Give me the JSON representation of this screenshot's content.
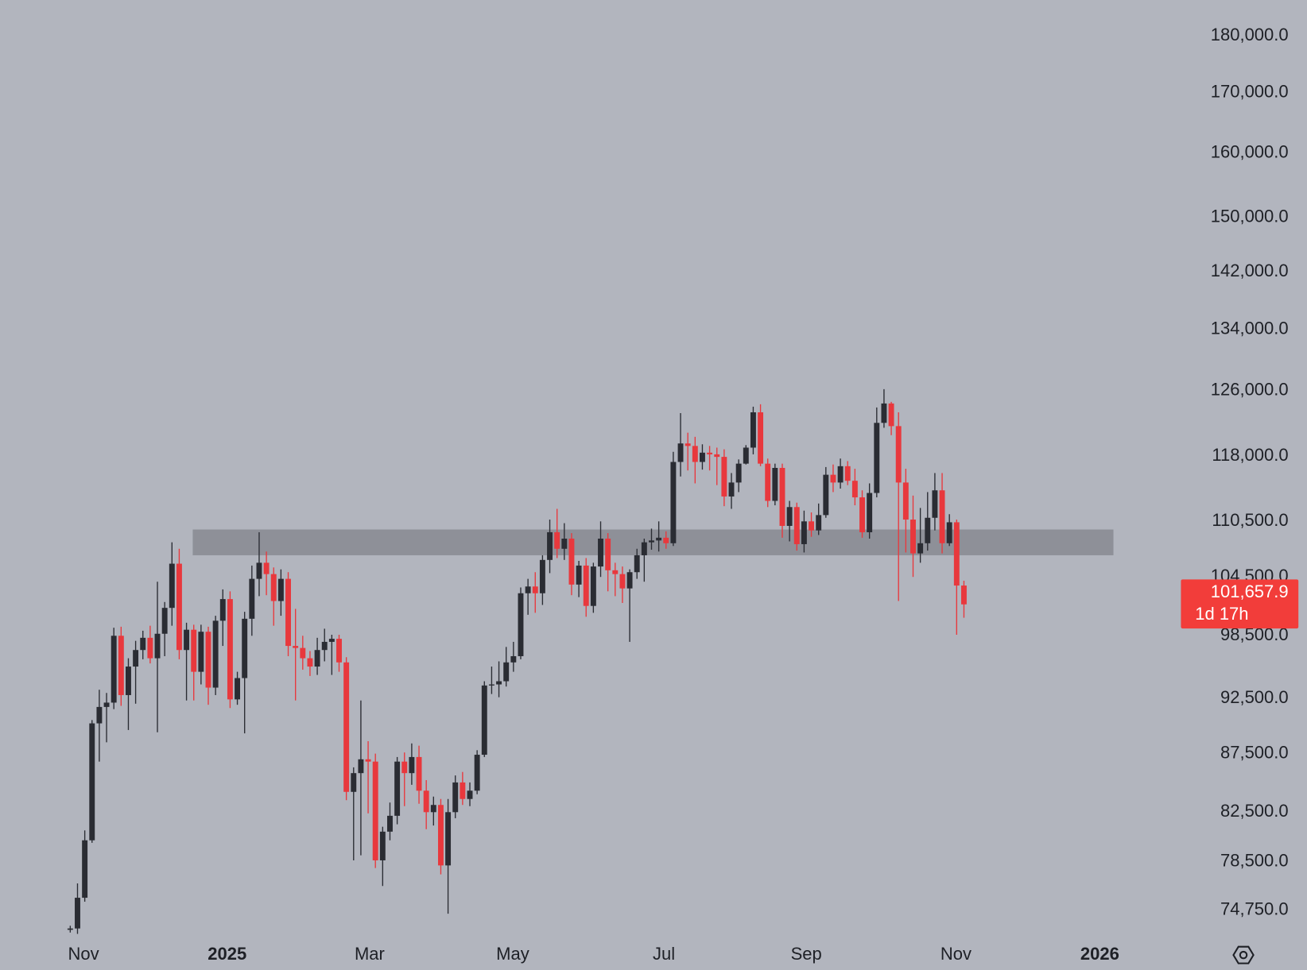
{
  "chart_data": {
    "type": "candlestick",
    "open": [
      73300,
      73400,
      75700,
      80200,
      90200,
      91700,
      92100,
      98500,
      92800,
      95500,
      97100,
      98300,
      96300,
      98700,
      101300,
      105900,
      97100,
      99100,
      95000,
      98900,
      93500,
      100000,
      102200,
      92400,
      94400,
      100200,
      104300,
      106000,
      104800,
      102000,
      104300,
      97500,
      97300,
      96300,
      95500,
      97100,
      97900,
      98200,
      95900,
      84200,
      85800,
      87000,
      86800,
      78600,
      80900,
      82200,
      86800,
      85800,
      87200,
      84300,
      82500,
      83100,
      78200,
      82500,
      85000,
      83600,
      84300,
      87400,
      93700,
      93800,
      94100,
      95900,
      96500,
      102800,
      103500,
      102800,
      106300,
      109300,
      107500,
      108600,
      103700,
      105700,
      101500,
      105600,
      108600,
      105200,
      104800,
      103300,
      105000,
      106800,
      108200,
      108400,
      108700,
      108100,
      117300,
      119500,
      119200,
      117300,
      118400,
      118200,
      117900,
      113300,
      114900,
      117100,
      119000,
      123300,
      117100,
      112800,
      116600,
      110000,
      112100,
      108000,
      110500,
      109500,
      111200,
      115800,
      114900,
      116800,
      115100,
      113200,
      109300,
      113700,
      122000,
      124400,
      121600,
      114900,
      110700,
      107000,
      108100,
      110900,
      114000,
      108100,
      110400,
      103600
    ],
    "high": [
      73600,
      76800,
      81000,
      90500,
      93300,
      93000,
      99300,
      99400,
      96300,
      98000,
      99000,
      99500,
      104000,
      101900,
      108200,
      107500,
      99800,
      99600,
      99600,
      99400,
      100500,
      103200,
      103000,
      95000,
      100900,
      105700,
      109300,
      107200,
      105500,
      105300,
      105000,
      101200,
      98500,
      97000,
      98300,
      99200,
      98600,
      98600,
      96400,
      86300,
      92300,
      88600,
      87500,
      81300,
      83300,
      87200,
      87600,
      88400,
      88200,
      85200,
      83800,
      83600,
      83600,
      85600,
      85900,
      85000,
      87800,
      94100,
      95500,
      96000,
      97400,
      97900,
      103400,
      104300,
      105000,
      106800,
      110700,
      111900,
      110300,
      109200,
      106200,
      106500,
      106000,
      110500,
      109200,
      106000,
      105600,
      105300,
      107500,
      108600,
      109700,
      110500,
      109400,
      118500,
      123200,
      120800,
      120300,
      119400,
      119200,
      119000,
      118800,
      116000,
      117600,
      119300,
      124000,
      124300,
      117700,
      117100,
      117100,
      112800,
      112600,
      111700,
      111500,
      112500,
      116700,
      117000,
      117700,
      117400,
      116500,
      114000,
      114800,
      123900,
      126200,
      124600,
      123300,
      116500,
      113400,
      112000,
      113800,
      116000,
      116000,
      111300,
      110700,
      104100
    ],
    "low": [
      73100,
      73000,
      75400,
      80000,
      86800,
      88500,
      91500,
      91800,
      89600,
      92000,
      96200,
      95800,
      89400,
      96500,
      99500,
      96200,
      92300,
      92300,
      93800,
      91900,
      92800,
      97500,
      91600,
      91900,
      89300,
      98500,
      102500,
      102600,
      99500,
      100500,
      96500,
      92300,
      95200,
      94600,
      94700,
      96000,
      94700,
      95000,
      83500,
      78600,
      79000,
      82400,
      78000,
      76600,
      80200,
      81500,
      83000,
      84800,
      83200,
      81100,
      81400,
      77500,
      74500,
      82000,
      83100,
      83000,
      84000,
      87200,
      92900,
      92600,
      93600,
      95000,
      96200,
      100600,
      100800,
      101600,
      104900,
      106500,
      106300,
      102600,
      102400,
      100400,
      100800,
      104500,
      103000,
      102500,
      101800,
      97900,
      104300,
      104000,
      107400,
      107200,
      107500,
      107800,
      115600,
      116300,
      114800,
      116400,
      116300,
      114600,
      112200,
      111900,
      113800,
      117000,
      118200,
      116800,
      112100,
      112300,
      108700,
      108300,
      107300,
      107100,
      108800,
      109000,
      110900,
      113800,
      114200,
      114600,
      112300,
      108700,
      108600,
      113200,
      121400,
      120500,
      102000,
      107100,
      104500,
      106000,
      107300,
      109500,
      107000,
      107800,
      98600,
      100300
    ],
    "close": [
      73400,
      75700,
      80200,
      90200,
      91700,
      92100,
      98500,
      92800,
      95500,
      97100,
      98300,
      96300,
      98700,
      101300,
      105900,
      97100,
      99100,
      95000,
      98900,
      93500,
      100000,
      102200,
      92400,
      94400,
      100200,
      104300,
      106000,
      104800,
      102000,
      104300,
      97500,
      97300,
      96300,
      95500,
      97100,
      97900,
      98200,
      95900,
      84200,
      85800,
      87000,
      86800,
      78600,
      80900,
      82200,
      86800,
      85800,
      87200,
      84300,
      82500,
      83100,
      78200,
      82500,
      85000,
      83600,
      84300,
      87400,
      93700,
      93800,
      94100,
      95900,
      96500,
      102800,
      103500,
      102800,
      106300,
      109300,
      107500,
      108600,
      103700,
      105700,
      101500,
      105600,
      108600,
      105200,
      104800,
      103300,
      105000,
      106800,
      108200,
      108400,
      108700,
      108100,
      117300,
      119500,
      119200,
      117300,
      118400,
      118200,
      117900,
      113300,
      114900,
      117100,
      119000,
      123300,
      117100,
      112800,
      116600,
      110000,
      112100,
      108000,
      110500,
      109500,
      111200,
      115800,
      114900,
      116800,
      115100,
      113200,
      109300,
      113700,
      122000,
      124400,
      121600,
      114900,
      110700,
      107000,
      108100,
      110900,
      114000,
      108100,
      110400,
      103600,
      101657.9
    ],
    "up_color": "#2a2c33",
    "down_color": "#e8383d",
    "log_scale": true,
    "ylim": [
      73100,
      186600
    ],
    "yticks": [
      {
        "value": 180000,
        "label": "180,000.0"
      },
      {
        "value": 170000,
        "label": "170,000.0"
      },
      {
        "value": 160000,
        "label": "160,000.0"
      },
      {
        "value": 150000,
        "label": "150,000.0"
      },
      {
        "value": 142000,
        "label": "142,000.0"
      },
      {
        "value": 134000,
        "label": "134,000.0"
      },
      {
        "value": 126000,
        "label": "126,000.0"
      },
      {
        "value": 118000,
        "label": "118,000.0"
      },
      {
        "value": 110500,
        "label": "110,500.0"
      },
      {
        "value": 104500,
        "label": "104,500.0"
      },
      {
        "value": 98500,
        "label": "98,500.0"
      },
      {
        "value": 92500,
        "label": "92,500.0"
      },
      {
        "value": 87500,
        "label": "87,500.0"
      },
      {
        "value": 82500,
        "label": "82,500.0"
      },
      {
        "value": 78500,
        "label": "78,500.0"
      },
      {
        "value": 74750,
        "label": "74,750.0"
      }
    ],
    "xticks": [
      {
        "value": 1.83,
        "label": "Nov"
      },
      {
        "value": 21.6,
        "label": "2025"
      },
      {
        "value": 41.2,
        "label": "Mar"
      },
      {
        "value": 60.9,
        "label": "May"
      },
      {
        "value": 81.7,
        "label": "Jul"
      },
      {
        "value": 101.3,
        "label": "Sep"
      },
      {
        "value": 121.9,
        "label": "Nov"
      },
      {
        "value": 141.7,
        "label": "2026"
      }
    ],
    "zone": [
      106800,
      109600
    ],
    "zone_color": "#8e9098",
    "last_price": {
      "value": 101657.9,
      "label": "101,657.9"
    },
    "countdown": "1d 17h",
    "last_color": "#f23d3a"
  }
}
